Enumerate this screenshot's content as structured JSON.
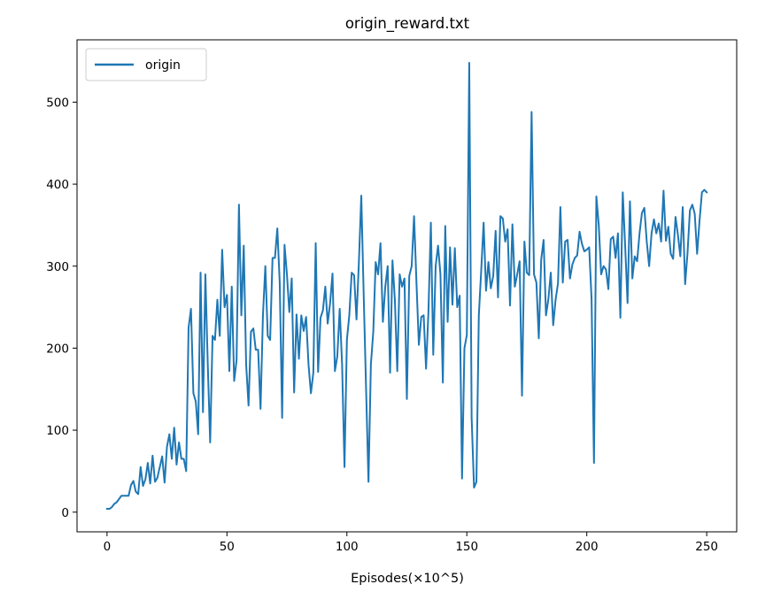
{
  "chart_data": {
    "type": "line",
    "title": "origin_reward.txt",
    "xlabel": "Episodes(×10^5)",
    "ylabel": "",
    "xlim": [
      -12.5,
      262.5
    ],
    "ylim": [
      -24,
      576
    ],
    "xticks": [
      0,
      50,
      100,
      150,
      200,
      250
    ],
    "yticks": [
      0,
      100,
      200,
      300,
      400,
      500
    ],
    "grid": false,
    "legend_position": "upper-left",
    "series": [
      {
        "name": "origin",
        "color": "#1f77b4",
        "x": [
          0,
          1,
          2,
          3,
          4,
          5,
          6,
          7,
          8,
          9,
          10,
          11,
          12,
          13,
          14,
          15,
          16,
          17,
          18,
          19,
          20,
          21,
          22,
          23,
          24,
          25,
          26,
          27,
          28,
          29,
          30,
          31,
          32,
          33,
          34,
          35,
          36,
          37,
          38,
          39,
          40,
          41,
          42,
          43,
          44,
          45,
          46,
          47,
          48,
          49,
          50,
          51,
          52,
          53,
          54,
          55,
          56,
          57,
          58,
          59,
          60,
          61,
          62,
          63,
          64,
          65,
          66,
          67,
          68,
          69,
          70,
          71,
          72,
          73,
          74,
          75,
          76,
          77,
          78,
          79,
          80,
          81,
          82,
          83,
          84,
          85,
          86,
          87,
          88,
          89,
          90,
          91,
          92,
          93,
          94,
          95,
          96,
          97,
          98,
          99,
          100,
          101,
          102,
          103,
          104,
          105,
          106,
          107,
          108,
          109,
          110,
          111,
          112,
          113,
          114,
          115,
          116,
          117,
          118,
          119,
          120,
          121,
          122,
          123,
          124,
          125,
          126,
          127,
          128,
          129,
          130,
          131,
          132,
          133,
          134,
          135,
          136,
          137,
          138,
          139,
          140,
          141,
          142,
          143,
          144,
          145,
          146,
          147,
          148,
          149,
          150,
          151,
          152,
          153,
          154,
          155,
          156,
          157,
          158,
          159,
          160,
          161,
          162,
          163,
          164,
          165,
          166,
          167,
          168,
          169,
          170,
          171,
          172,
          173,
          174,
          175,
          176,
          177,
          178,
          179,
          180,
          181,
          182,
          183,
          184,
          185,
          186,
          187,
          188,
          189,
          190,
          191,
          192,
          193,
          194,
          195,
          196,
          197,
          198,
          199,
          200,
          201,
          202,
          203,
          204,
          205,
          206,
          207,
          208,
          209,
          210,
          211,
          212,
          213,
          214,
          215,
          216,
          217,
          218,
          219,
          220,
          221,
          222,
          223,
          224,
          225,
          226,
          227,
          228,
          229,
          230,
          231,
          232,
          233,
          234,
          235,
          236,
          237,
          238,
          239,
          240,
          241,
          242,
          243,
          244,
          245,
          246,
          247,
          248,
          249,
          250
        ],
        "y": [
          4,
          4,
          6,
          10,
          12,
          16,
          20,
          20,
          20,
          20,
          33,
          38,
          25,
          22,
          55,
          32,
          40,
          60,
          35,
          69,
          37,
          42,
          55,
          68,
          36,
          80,
          95,
          65,
          103,
          58,
          85,
          65,
          65,
          50,
          225,
          248,
          145,
          135,
          95,
          292,
          122,
          290,
          180,
          85,
          215,
          210,
          259,
          215,
          320,
          250,
          265,
          172,
          275,
          160,
          185,
          375,
          240,
          325,
          180,
          130,
          220,
          224,
          198,
          198,
          126,
          240,
          300,
          215,
          210,
          310,
          310,
          346,
          280,
          115,
          326,
          290,
          244,
          285,
          146,
          241,
          187,
          240,
          221,
          238,
          180,
          145,
          170,
          328,
          171,
          237,
          246,
          275,
          230,
          255,
          291,
          172,
          190,
          248,
          180,
          55,
          210,
          240,
          292,
          289,
          235,
          305,
          386,
          265,
          150,
          37,
          180,
          220,
          305,
          290,
          328,
          232,
          275,
          300,
          170,
          307,
          259,
          172,
          290,
          275,
          285,
          138,
          288,
          300,
          361,
          280,
          204,
          238,
          240,
          175,
          245,
          353,
          192,
          300,
          325,
          290,
          158,
          349,
          232,
          323,
          253,
          322,
          250,
          264,
          41,
          200,
          216,
          548,
          115,
          30,
          37,
          240,
          295,
          353,
          270,
          305,
          273,
          288,
          343,
          262,
          361,
          358,
          330,
          345,
          252,
          351,
          275,
          290,
          306,
          142,
          330,
          292,
          289,
          488,
          290,
          280,
          212,
          308,
          332,
          240,
          260,
          292,
          228,
          259,
          279,
          372,
          280,
          330,
          332,
          285,
          302,
          310,
          313,
          342,
          327,
          318,
          320,
          323,
          260,
          60,
          385,
          350,
          290,
          300,
          296,
          272,
          333,
          336,
          310,
          340,
          237,
          390,
          325,
          255,
          379,
          285,
          312,
          306,
          340,
          365,
          371,
          330,
          300,
          340,
          357,
          340,
          352,
          330,
          392,
          331,
          348,
          315,
          309,
          360,
          338,
          312,
          372,
          278,
          316,
          368,
          375,
          364,
          315,
          355,
          390,
          393,
          390
        ]
      }
    ]
  }
}
